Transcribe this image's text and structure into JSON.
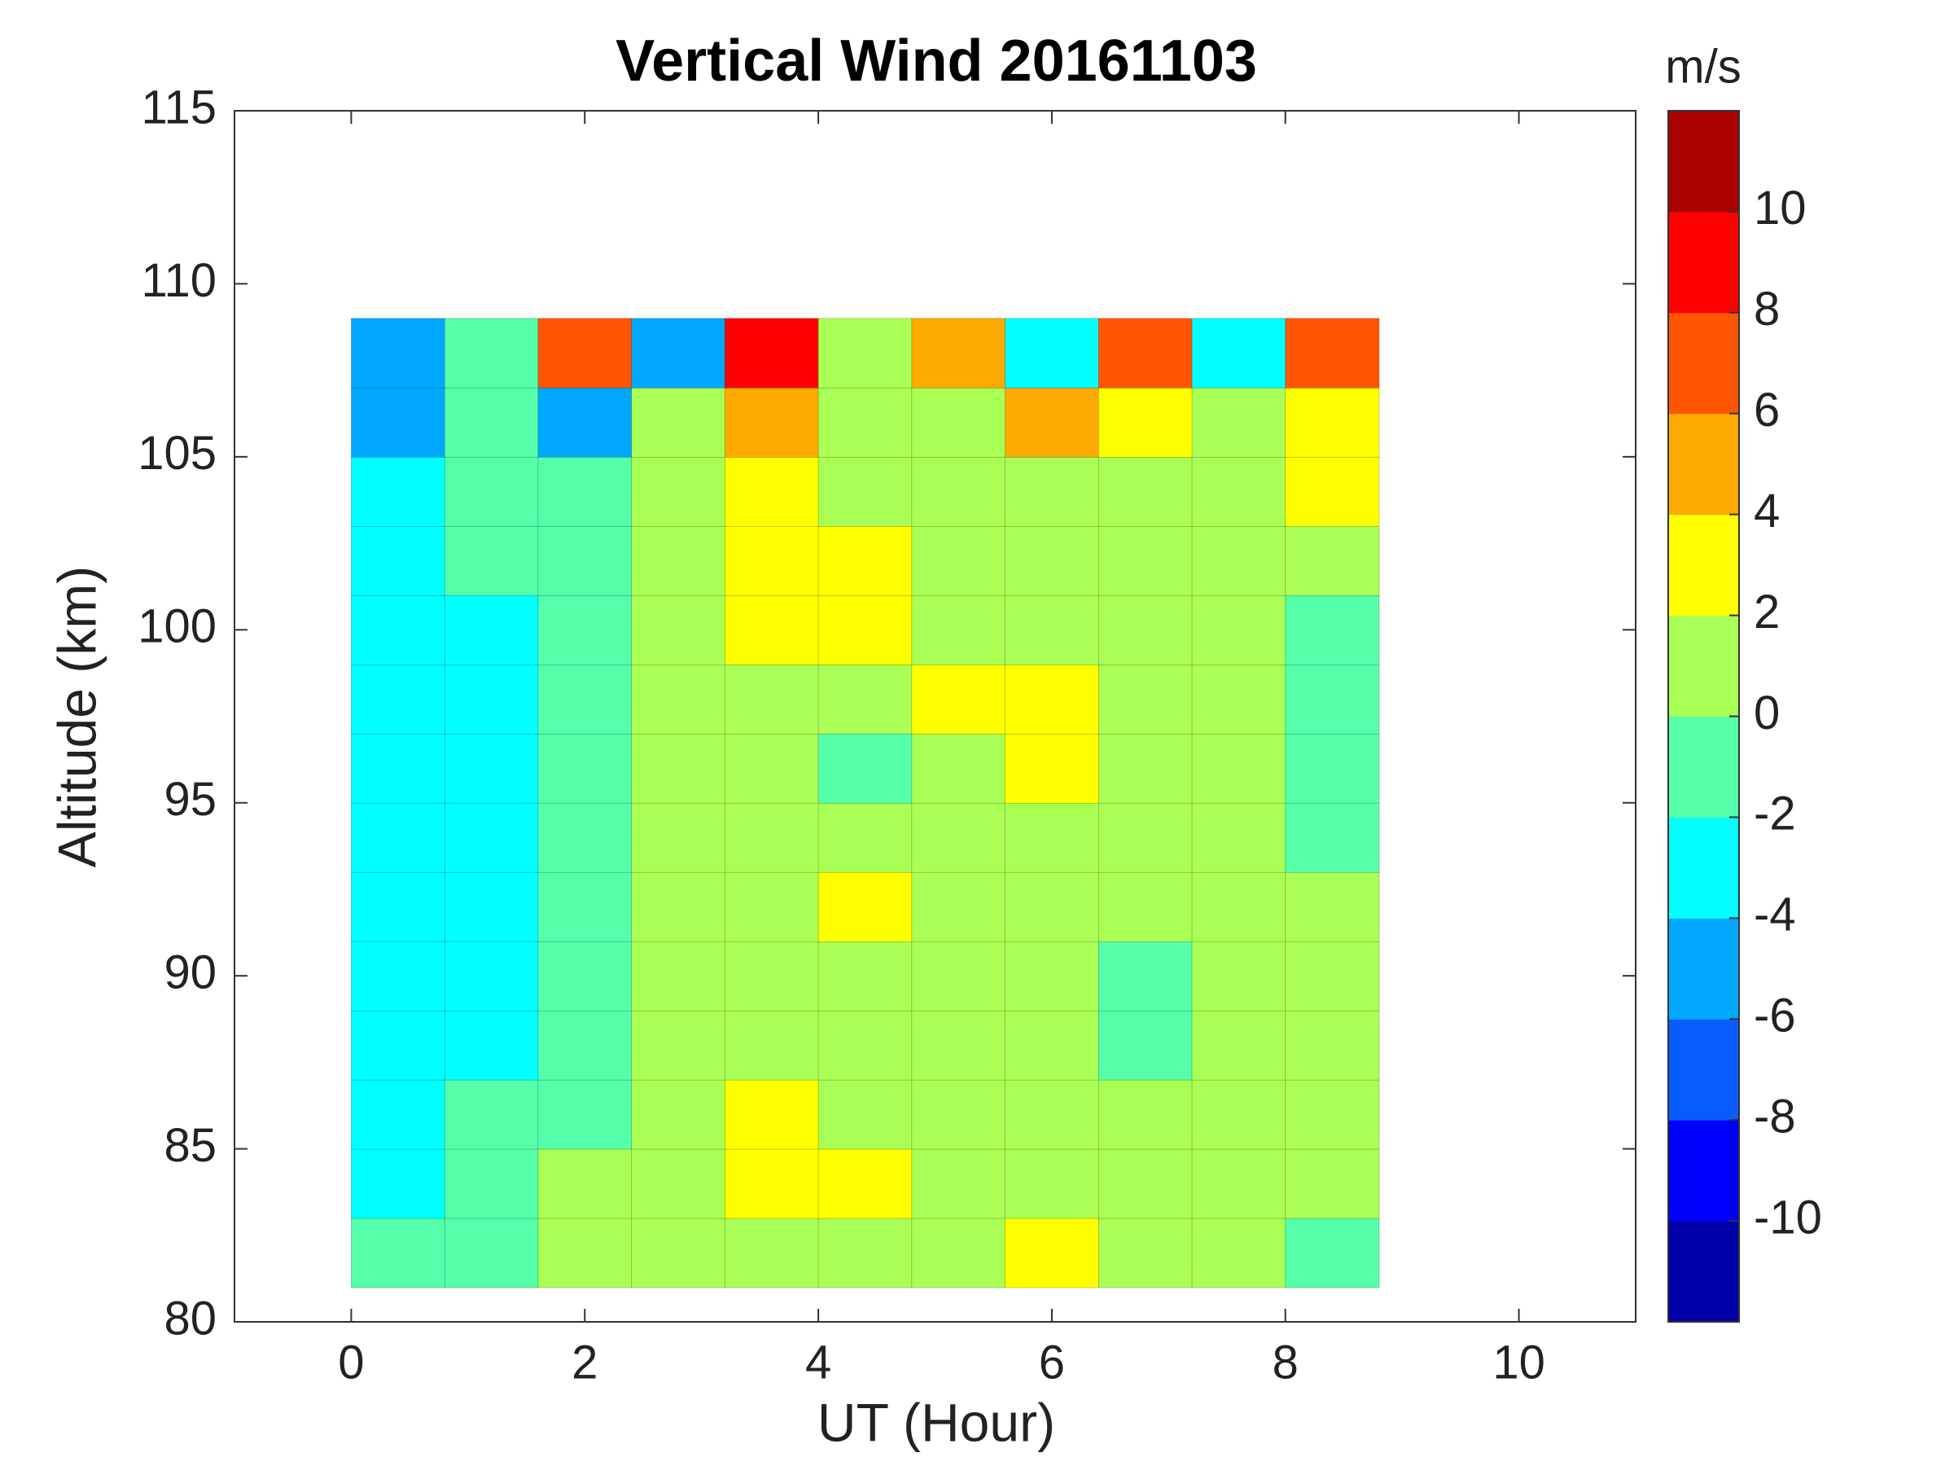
{
  "chart_data": {
    "type": "contourf",
    "title": "Vertical Wind 20161103",
    "xlabel": "UT (Hour)",
    "ylabel": "Altitude (km)",
    "colorbar_label": "m/s",
    "xlim": [
      -1,
      11
    ],
    "xticks": [
      0,
      2,
      4,
      6,
      8,
      10
    ],
    "ylim": [
      80,
      115
    ],
    "yticks": [
      80,
      85,
      90,
      95,
      100,
      105,
      110,
      115
    ],
    "clim": [
      -12,
      12
    ],
    "cticks": [
      -10,
      -8,
      -6,
      -4,
      -2,
      0,
      2,
      4,
      6,
      8,
      10
    ],
    "colormap": [
      "#0000a8",
      "#0000ff",
      "#0a5cff",
      "#00a8ff",
      "#00ffff",
      "#55ffaa",
      "#aaff55",
      "#ffff00",
      "#ffaa00",
      "#ff5500",
      "#ff0000",
      "#aa0000"
    ],
    "x": [
      0.4,
      1.2,
      2.0,
      2.8,
      3.6,
      4.4,
      5.2,
      6.0,
      6.8,
      7.6,
      8.4
    ],
    "y": [
      82,
      84,
      86,
      88,
      90,
      92,
      94,
      96,
      98,
      100,
      102,
      104,
      106,
      108
    ],
    "z": [
      [
        -2,
        -1,
        0,
        1,
        0,
        1,
        0,
        2,
        0,
        1,
        -1
      ],
      [
        -3,
        -2,
        0,
        1,
        2,
        2,
        1,
        1,
        1,
        1,
        0
      ],
      [
        -4,
        -2,
        -1,
        1,
        2,
        1,
        1,
        0,
        1,
        1,
        1
      ],
      [
        -4,
        -3,
        -1,
        0,
        1,
        1,
        0,
        1,
        -1,
        0,
        1
      ],
      [
        -3,
        -3,
        -1,
        0,
        1,
        1,
        0,
        0,
        -1,
        1,
        0
      ],
      [
        -3,
        -3,
        -1,
        0,
        1,
        3,
        1,
        0,
        0,
        1,
        0
      ],
      [
        -3,
        -3,
        -1,
        0,
        1,
        1,
        1,
        1,
        0,
        1,
        -1
      ],
      [
        -3,
        -3,
        -1,
        0,
        1,
        -1,
        1,
        2,
        1,
        0,
        -1
      ],
      [
        -3,
        -3,
        -1,
        0,
        1,
        1,
        2,
        3,
        1,
        1,
        -1
      ],
      [
        -4,
        -3,
        -1,
        0,
        2,
        3,
        1,
        1,
        1,
        0,
        -1
      ],
      [
        -3,
        -2,
        -1,
        0,
        3,
        3,
        1,
        1,
        1,
        0,
        1
      ],
      [
        -4,
        -1,
        -1,
        1,
        3,
        1,
        0,
        0,
        1,
        1,
        2
      ],
      [
        -5,
        -2,
        -5,
        1,
        4,
        1,
        0,
        5,
        3,
        1,
        3
      ],
      [
        -6,
        -2,
        7,
        -5,
        9,
        1,
        5,
        -3,
        7,
        -4,
        7
      ]
    ]
  }
}
